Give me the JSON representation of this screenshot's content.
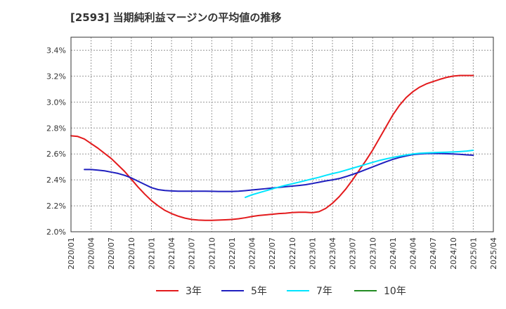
{
  "chart_data": {
    "type": "line",
    "title": "[2593]  当期純利益マージンの平均値の推移",
    "xlabel": "",
    "ylabel": "",
    "ylim": [
      2.0,
      3.5
    ],
    "yticks": [
      "2.0%",
      "2.2%",
      "2.4%",
      "2.6%",
      "2.8%",
      "3.0%",
      "3.2%",
      "3.4%"
    ],
    "ytick_values": [
      2.0,
      2.2,
      2.4,
      2.6,
      2.8,
      3.0,
      3.2,
      3.4
    ],
    "xticks": [
      "2020/01",
      "2020/04",
      "2020/07",
      "2020/10",
      "2021/01",
      "2021/04",
      "2021/07",
      "2021/10",
      "2022/01",
      "2022/04",
      "2022/07",
      "2022/10",
      "2023/01",
      "2023/04",
      "2023/07",
      "2023/10",
      "2024/01",
      "2024/04",
      "2024/07",
      "2024/10",
      "2025/01",
      "2025/04"
    ],
    "grid": true,
    "legend": "bottom",
    "series": [
      {
        "name": "3年",
        "color": "#e31a1c",
        "points": [
          [
            "2020/01",
            2.74
          ],
          [
            "2020/02",
            2.735
          ],
          [
            "2020/03",
            2.715
          ],
          [
            "2020/04",
            2.68
          ],
          [
            "2020/05",
            2.645
          ],
          [
            "2020/06",
            2.605
          ],
          [
            "2020/07",
            2.565
          ],
          [
            "2020/08",
            2.515
          ],
          [
            "2020/09",
            2.465
          ],
          [
            "2020/10",
            2.405
          ],
          [
            "2020/11",
            2.345
          ],
          [
            "2020/12",
            2.29
          ],
          [
            "2021/01",
            2.24
          ],
          [
            "2021/02",
            2.2
          ],
          [
            "2021/03",
            2.165
          ],
          [
            "2021/04",
            2.14
          ],
          [
            "2021/05",
            2.12
          ],
          [
            "2021/06",
            2.105
          ],
          [
            "2021/07",
            2.095
          ],
          [
            "2021/08",
            2.09
          ],
          [
            "2021/09",
            2.088
          ],
          [
            "2021/10",
            2.088
          ],
          [
            "2021/11",
            2.09
          ],
          [
            "2021/12",
            2.092
          ],
          [
            "2022/01",
            2.095
          ],
          [
            "2022/02",
            2.1
          ],
          [
            "2022/03",
            2.108
          ],
          [
            "2022/04",
            2.118
          ],
          [
            "2022/05",
            2.125
          ],
          [
            "2022/06",
            2.13
          ],
          [
            "2022/07",
            2.135
          ],
          [
            "2022/08",
            2.14
          ],
          [
            "2022/09",
            2.143
          ],
          [
            "2022/10",
            2.148
          ],
          [
            "2022/11",
            2.15
          ],
          [
            "2022/12",
            2.15
          ],
          [
            "2023/01",
            2.147
          ],
          [
            "2023/02",
            2.155
          ],
          [
            "2023/03",
            2.18
          ],
          [
            "2023/04",
            2.22
          ],
          [
            "2023/05",
            2.27
          ],
          [
            "2023/06",
            2.33
          ],
          [
            "2023/07",
            2.4
          ],
          [
            "2023/08",
            2.475
          ],
          [
            "2023/09",
            2.55
          ],
          [
            "2023/10",
            2.63
          ],
          [
            "2023/11",
            2.72
          ],
          [
            "2023/12",
            2.81
          ],
          [
            "2024/01",
            2.9
          ],
          [
            "2024/02",
            2.975
          ],
          [
            "2024/03",
            3.035
          ],
          [
            "2024/04",
            3.08
          ],
          [
            "2024/05",
            3.115
          ],
          [
            "2024/06",
            3.14
          ],
          [
            "2024/07",
            3.158
          ],
          [
            "2024/08",
            3.175
          ],
          [
            "2024/09",
            3.19
          ],
          [
            "2024/10",
            3.2
          ],
          [
            "2024/11",
            3.205
          ],
          [
            "2024/12",
            3.205
          ],
          [
            "2025/01",
            3.205
          ]
        ]
      },
      {
        "name": "5年",
        "color": "#1f1fbf",
        "points": [
          [
            "2020/03",
            2.48
          ],
          [
            "2020/04",
            2.48
          ],
          [
            "2020/05",
            2.475
          ],
          [
            "2020/06",
            2.47
          ],
          [
            "2020/07",
            2.46
          ],
          [
            "2020/08",
            2.45
          ],
          [
            "2020/09",
            2.435
          ],
          [
            "2020/10",
            2.415
          ],
          [
            "2020/11",
            2.39
          ],
          [
            "2020/12",
            2.365
          ],
          [
            "2021/01",
            2.34
          ],
          [
            "2021/02",
            2.325
          ],
          [
            "2021/03",
            2.318
          ],
          [
            "2021/04",
            2.315
          ],
          [
            "2021/05",
            2.313
          ],
          [
            "2021/06",
            2.313
          ],
          [
            "2021/07",
            2.313
          ],
          [
            "2021/08",
            2.313
          ],
          [
            "2021/09",
            2.313
          ],
          [
            "2021/10",
            2.312
          ],
          [
            "2021/11",
            2.311
          ],
          [
            "2021/12",
            2.311
          ],
          [
            "2022/01",
            2.311
          ],
          [
            "2022/02",
            2.313
          ],
          [
            "2022/03",
            2.317
          ],
          [
            "2022/04",
            2.322
          ],
          [
            "2022/05",
            2.327
          ],
          [
            "2022/06",
            2.332
          ],
          [
            "2022/07",
            2.337
          ],
          [
            "2022/08",
            2.342
          ],
          [
            "2022/09",
            2.347
          ],
          [
            "2022/10",
            2.352
          ],
          [
            "2022/11",
            2.357
          ],
          [
            "2022/12",
            2.363
          ],
          [
            "2023/01",
            2.372
          ],
          [
            "2023/02",
            2.382
          ],
          [
            "2023/03",
            2.392
          ],
          [
            "2023/04",
            2.4
          ],
          [
            "2023/05",
            2.41
          ],
          [
            "2023/06",
            2.425
          ],
          [
            "2023/07",
            2.442
          ],
          [
            "2023/08",
            2.46
          ],
          [
            "2023/09",
            2.48
          ],
          [
            "2023/10",
            2.5
          ],
          [
            "2023/11",
            2.52
          ],
          [
            "2023/12",
            2.54
          ],
          [
            "2024/01",
            2.558
          ],
          [
            "2024/02",
            2.573
          ],
          [
            "2024/03",
            2.585
          ],
          [
            "2024/04",
            2.595
          ],
          [
            "2024/05",
            2.6
          ],
          [
            "2024/06",
            2.603
          ],
          [
            "2024/07",
            2.603
          ],
          [
            "2024/08",
            2.603
          ],
          [
            "2024/09",
            2.602
          ],
          [
            "2024/10",
            2.6
          ],
          [
            "2024/11",
            2.597
          ],
          [
            "2024/12",
            2.593
          ],
          [
            "2025/01",
            2.59
          ]
        ]
      },
      {
        "name": "7年",
        "color": "#00e5ff",
        "points": [
          [
            "2022/03",
            2.265
          ],
          [
            "2022/04",
            2.285
          ],
          [
            "2022/05",
            2.3
          ],
          [
            "2022/06",
            2.315
          ],
          [
            "2022/07",
            2.33
          ],
          [
            "2022/08",
            2.345
          ],
          [
            "2022/09",
            2.358
          ],
          [
            "2022/10",
            2.37
          ],
          [
            "2022/11",
            2.382
          ],
          [
            "2022/12",
            2.395
          ],
          [
            "2023/01",
            2.408
          ],
          [
            "2023/02",
            2.42
          ],
          [
            "2023/03",
            2.435
          ],
          [
            "2023/04",
            2.448
          ],
          [
            "2023/05",
            2.46
          ],
          [
            "2023/06",
            2.475
          ],
          [
            "2023/07",
            2.49
          ],
          [
            "2023/08",
            2.505
          ],
          [
            "2023/09",
            2.52
          ],
          [
            "2023/10",
            2.535
          ],
          [
            "2023/11",
            2.55
          ],
          [
            "2023/12",
            2.562
          ],
          [
            "2024/01",
            2.573
          ],
          [
            "2024/02",
            2.583
          ],
          [
            "2024/03",
            2.592
          ],
          [
            "2024/04",
            2.6
          ],
          [
            "2024/05",
            2.605
          ],
          [
            "2024/06",
            2.608
          ],
          [
            "2024/07",
            2.61
          ],
          [
            "2024/08",
            2.612
          ],
          [
            "2024/09",
            2.613
          ],
          [
            "2024/10",
            2.615
          ],
          [
            "2024/11",
            2.618
          ],
          [
            "2024/12",
            2.622
          ],
          [
            "2025/01",
            2.628
          ]
        ]
      },
      {
        "name": "10年",
        "color": "#228b22",
        "points": []
      }
    ]
  }
}
